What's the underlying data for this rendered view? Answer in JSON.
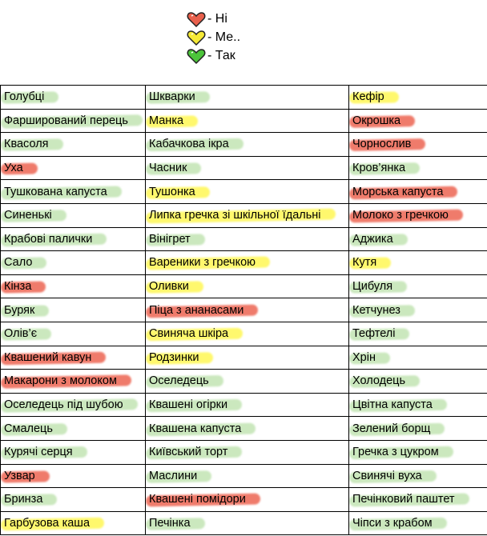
{
  "colors": {
    "red": "#e8604c",
    "yellow": "#f5e936",
    "green": "#4cc43a"
  },
  "legend": [
    {
      "icon": "red-heart-icon",
      "color": "#e8604c",
      "label": "- Ні"
    },
    {
      "icon": "yellow-heart-icon",
      "color": "#f5e936",
      "label": "- Ме.."
    },
    {
      "icon": "green-heart-icon",
      "color": "#4cc43a",
      "label": "- Так"
    }
  ],
  "rows": [
    [
      {
        "text": "Голубці",
        "mark": "green"
      },
      {
        "text": "Шкварки",
        "mark": "green"
      },
      {
        "text": "Кефір",
        "mark": "yellow"
      }
    ],
    [
      {
        "text": "Фаршировaний перець",
        "mark": "green"
      },
      {
        "text": "Манка",
        "mark": "yellow"
      },
      {
        "text": "Окрошка",
        "mark": "red"
      }
    ],
    [
      {
        "text": "Квасоля",
        "mark": "green"
      },
      {
        "text": "Кабачкова ікра",
        "mark": "green"
      },
      {
        "text": "Чорнослив",
        "mark": "red"
      }
    ],
    [
      {
        "text": "Уха",
        "mark": "red"
      },
      {
        "text": "Часник",
        "mark": "green"
      },
      {
        "text": "Кров’янка",
        "mark": "green"
      }
    ],
    [
      {
        "text": "Тушкована капуста",
        "mark": "green"
      },
      {
        "text": "Тушонка",
        "mark": "yellow"
      },
      {
        "text": "Морська капуста",
        "mark": "red"
      }
    ],
    [
      {
        "text": "Синенькі",
        "mark": "green"
      },
      {
        "text": "Липка гречка зі шкільної їдальні",
        "mark": "yellow"
      },
      {
        "text": "Молоко з гречкою",
        "mark": "red"
      }
    ],
    [
      {
        "text": "Крабові палички",
        "mark": "green"
      },
      {
        "text": "Вінігрет",
        "mark": "green"
      },
      {
        "text": "Аджика",
        "mark": "green"
      }
    ],
    [
      {
        "text": "Сало",
        "mark": "green"
      },
      {
        "text": "Вареники з гречкою",
        "mark": "yellow"
      },
      {
        "text": "Кутя",
        "mark": "yellow"
      }
    ],
    [
      {
        "text": "Кінза",
        "mark": "red"
      },
      {
        "text": "Оливки",
        "mark": "yellow"
      },
      {
        "text": "Цибуля",
        "mark": "green"
      }
    ],
    [
      {
        "text": "Буряк",
        "mark": "green"
      },
      {
        "text": "Піца з ананасами",
        "mark": "red"
      },
      {
        "text": "Кетчунез",
        "mark": "green"
      }
    ],
    [
      {
        "text": "Олів’є",
        "mark": "green"
      },
      {
        "text": "Свиняча шкіра",
        "mark": "yellow"
      },
      {
        "text": "Тефтелі",
        "mark": "green"
      }
    ],
    [
      {
        "text": "Квашений кавун",
        "mark": "red"
      },
      {
        "text": "Родзинки",
        "mark": "yellow"
      },
      {
        "text": "Хрін",
        "mark": "green"
      }
    ],
    [
      {
        "text": "Макарони з молоком",
        "mark": "red"
      },
      {
        "text": "Оселедець",
        "mark": "green"
      },
      {
        "text": "Холодець",
        "mark": "green"
      }
    ],
    [
      {
        "text": "Оселедець під шубою",
        "mark": "green"
      },
      {
        "text": "Квашені огірки",
        "mark": "green"
      },
      {
        "text": "Цвітна капуста",
        "mark": "green"
      }
    ],
    [
      {
        "text": "Смалець",
        "mark": "green"
      },
      {
        "text": "Квашена капуста",
        "mark": "green"
      },
      {
        "text": "Зелений борщ",
        "mark": "green"
      }
    ],
    [
      {
        "text": "Курячі серця",
        "mark": "green"
      },
      {
        "text": "Київський торт",
        "mark": "green"
      },
      {
        "text": "Гречка з цукром",
        "mark": "green"
      }
    ],
    [
      {
        "text": "Узвар",
        "mark": "red"
      },
      {
        "text": "Маслини",
        "mark": "green"
      },
      {
        "text": "Свинячі вуха",
        "mark": "green"
      }
    ],
    [
      {
        "text": "Бринза",
        "mark": "green"
      },
      {
        "text": "Квашені помідори",
        "mark": "red"
      },
      {
        "text": "Печінковий паштет",
        "mark": "green"
      }
    ],
    [
      {
        "text": "Гарбузова каша",
        "mark": "yellow"
      },
      {
        "text": "Печінка",
        "mark": "green"
      },
      {
        "text": "Чіпси з крабом",
        "mark": "green"
      }
    ]
  ]
}
